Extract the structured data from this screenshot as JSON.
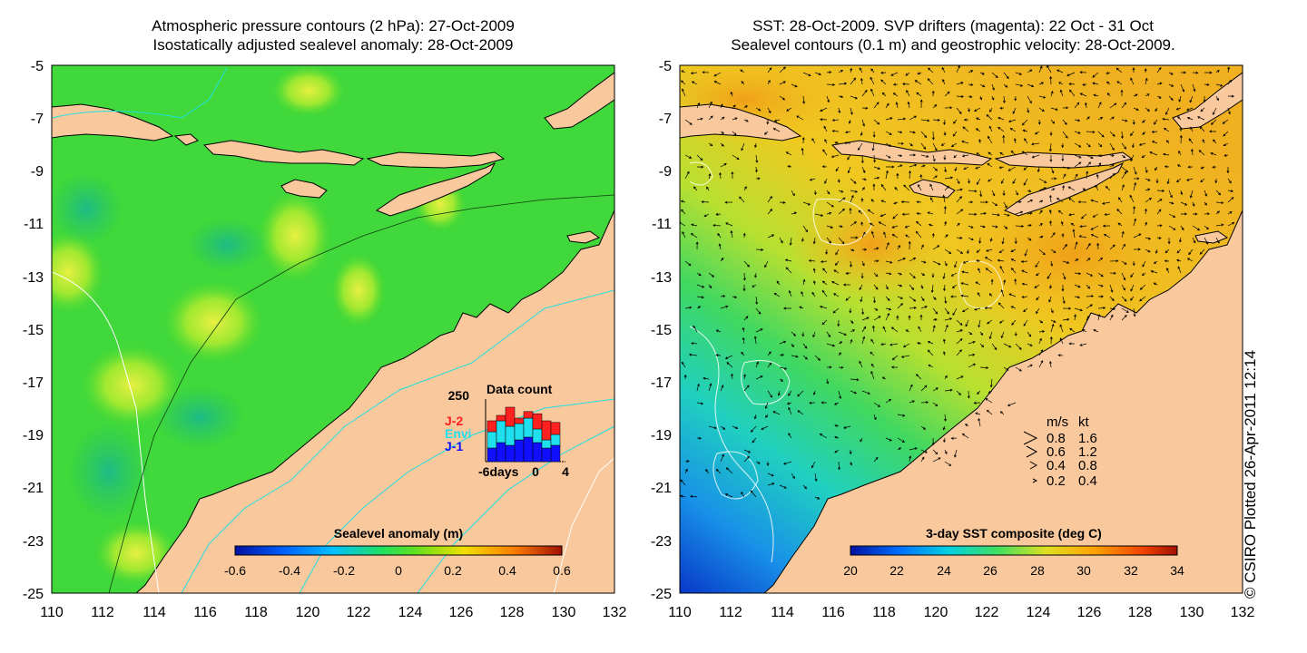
{
  "left_panel": {
    "title_line1": "Atmospheric pressure contours (2 hPa): 27-Oct-2009",
    "title_line2": "Isostatically adjusted sealevel anomaly: 28-Oct-2009",
    "lat_ticks": [
      "-5",
      "-7",
      "-9",
      "-11",
      "-13",
      "-15",
      "-17",
      "-19",
      "-21",
      "-23",
      "-25"
    ],
    "lon_ticks": [
      "110",
      "112",
      "114",
      "116",
      "118",
      "120",
      "122",
      "124",
      "126",
      "128",
      "130",
      "132"
    ],
    "colorbar": {
      "label": "Sealevel anomaly (m)",
      "ticks": [
        "-0.6",
        "-0.4",
        "-0.2",
        "0",
        "0.2",
        "0.4",
        "0.6"
      ]
    },
    "data_count": {
      "title": "Data count",
      "ymax_label": "250",
      "x_labels": [
        "-6days",
        "0",
        "4"
      ],
      "legend": [
        {
          "name": "J-2",
          "color": "#ff2020"
        },
        {
          "name": "Envi",
          "color": "#20e0f0"
        },
        {
          "name": "J-1",
          "color": "#1010ff"
        }
      ],
      "bars": [
        {
          "j1": 0.25,
          "envi": 0.55,
          "j2": 0.75
        },
        {
          "j1": 0.35,
          "envi": 0.75,
          "j2": 0.85
        },
        {
          "j1": 0.3,
          "envi": 0.65,
          "j2": 1.0
        },
        {
          "j1": 0.4,
          "envi": 0.7,
          "j2": 0.8
        },
        {
          "j1": 0.45,
          "envi": 0.8,
          "j2": 0.92
        },
        {
          "j1": 0.35,
          "envi": 0.6,
          "j2": 0.88
        },
        {
          "j1": 0.25,
          "envi": 0.4,
          "j2": 0.75
        },
        {
          "j1": 0.3,
          "envi": 0.5,
          "j2": 0.72
        }
      ]
    }
  },
  "right_panel": {
    "title_line1": "SST: 28-Oct-2009. SVP drifters (magenta): 22 Oct - 31 Oct",
    "title_line2": "Sealevel contours (0.1 m) and geostrophic velocity: 28-Oct-2009.",
    "lat_ticks": [
      "-5",
      "-7",
      "-9",
      "-11",
      "-13",
      "-15",
      "-17",
      "-19",
      "-21",
      "-23",
      "-25"
    ],
    "lon_ticks": [
      "110",
      "112",
      "114",
      "116",
      "118",
      "120",
      "122",
      "124",
      "126",
      "128",
      "130",
      "132"
    ],
    "colorbar": {
      "label": "3-day SST composite (deg C)",
      "ticks": [
        "20",
        "22",
        "24",
        "26",
        "28",
        "30",
        "32",
        "34"
      ]
    },
    "velocity_legend": {
      "header_ms": "m/s",
      "header_kt": "kt",
      "rows": [
        {
          "ms": "0.8",
          "kt": "1.6"
        },
        {
          "ms": "0.6",
          "kt": "1.2"
        },
        {
          "ms": "0.4",
          "kt": "0.8"
        },
        {
          "ms": "0.2",
          "kt": "0.4"
        }
      ]
    }
  },
  "credit": "© CSIRO Plotted 26-Apr-2011 12:14",
  "colors": {
    "land": "#f9c89c",
    "sea_level_base": "#33d633",
    "vector": "#000000",
    "contour_white": "#ffffff",
    "contour_cyan": "#20e0e0"
  }
}
